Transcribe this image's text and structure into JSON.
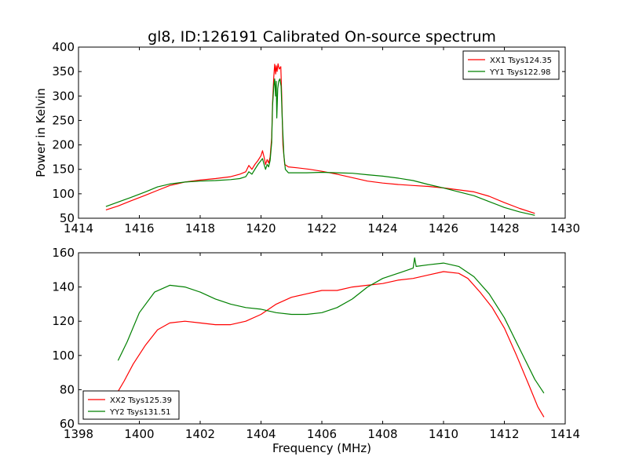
{
  "figure": {
    "title": "gl8, ID:126191 Calibrated On-source spectrum",
    "xlabel": "Frequency (MHz)",
    "ylabel": "Power in Kelvin"
  },
  "chart_data": [
    {
      "type": "line",
      "xlim": [
        1414,
        1430
      ],
      "ylim": [
        50,
        400
      ],
      "xticks": [
        1414,
        1416,
        1418,
        1420,
        1422,
        1424,
        1426,
        1428,
        1430
      ],
      "yticks": [
        50,
        100,
        150,
        200,
        250,
        300,
        350,
        400
      ],
      "legend_position": "top-right",
      "series": [
        {
          "name": "XX1 Tsys124.35",
          "color": "#ff0000",
          "points": [
            [
              1414.9,
              67
            ],
            [
              1415.3,
              75
            ],
            [
              1415.7,
              85
            ],
            [
              1416.2,
              97
            ],
            [
              1416.6,
              107
            ],
            [
              1417,
              117
            ],
            [
              1417.5,
              124
            ],
            [
              1418,
              128
            ],
            [
              1418.5,
              131
            ],
            [
              1419,
              135
            ],
            [
              1419.3,
              140
            ],
            [
              1419.5,
              145
            ],
            [
              1419.6,
              158
            ],
            [
              1419.7,
              150
            ],
            [
              1419.8,
              160
            ],
            [
              1419.9,
              168
            ],
            [
              1420,
              178
            ],
            [
              1420.05,
              188
            ],
            [
              1420.1,
              175
            ],
            [
              1420.15,
              160
            ],
            [
              1420.2,
              170
            ],
            [
              1420.25,
              163
            ],
            [
              1420.3,
              175
            ],
            [
              1420.35,
              215
            ],
            [
              1420.38,
              285
            ],
            [
              1420.42,
              340
            ],
            [
              1420.45,
              365
            ],
            [
              1420.48,
              345
            ],
            [
              1420.5,
              362
            ],
            [
              1420.53,
              350
            ],
            [
              1420.56,
              366
            ],
            [
              1420.6,
              355
            ],
            [
              1420.65,
              360
            ],
            [
              1420.68,
              300
            ],
            [
              1420.72,
              200
            ],
            [
              1420.78,
              160
            ],
            [
              1420.9,
              155
            ],
            [
              1421.2,
              153
            ],
            [
              1421.6,
              150
            ],
            [
              1422,
              146
            ],
            [
              1422.5,
              140
            ],
            [
              1423,
              133
            ],
            [
              1423.5,
              126
            ],
            [
              1424,
              122
            ],
            [
              1424.5,
              119
            ],
            [
              1425,
              117
            ],
            [
              1425.5,
              115
            ],
            [
              1426,
              112
            ],
            [
              1426.5,
              108
            ],
            [
              1427,
              104
            ],
            [
              1427.5,
              95
            ],
            [
              1428,
              82
            ],
            [
              1428.5,
              70
            ],
            [
              1429,
              60
            ]
          ]
        },
        {
          "name": "YY1 Tsys122.98",
          "color": "#008000",
          "points": [
            [
              1414.9,
              74
            ],
            [
              1415.3,
              83
            ],
            [
              1415.7,
              92
            ],
            [
              1416.2,
              104
            ],
            [
              1416.6,
              114
            ],
            [
              1417,
              120
            ],
            [
              1417.5,
              124
            ],
            [
              1418,
              126
            ],
            [
              1418.5,
              127
            ],
            [
              1419,
              129
            ],
            [
              1419.3,
              131
            ],
            [
              1419.5,
              135
            ],
            [
              1419.6,
              145
            ],
            [
              1419.7,
              140
            ],
            [
              1419.8,
              150
            ],
            [
              1419.9,
              160
            ],
            [
              1420,
              168
            ],
            [
              1420.05,
              172
            ],
            [
              1420.1,
              160
            ],
            [
              1420.15,
              150
            ],
            [
              1420.2,
              160
            ],
            [
              1420.25,
              155
            ],
            [
              1420.3,
              168
            ],
            [
              1420.35,
              205
            ],
            [
              1420.38,
              280
            ],
            [
              1420.42,
              320
            ],
            [
              1420.45,
              335
            ],
            [
              1420.48,
              300
            ],
            [
              1420.5,
              330
            ],
            [
              1420.52,
              255
            ],
            [
              1420.55,
              315
            ],
            [
              1420.58,
              330
            ],
            [
              1420.62,
              335
            ],
            [
              1420.66,
              320
            ],
            [
              1420.7,
              250
            ],
            [
              1420.75,
              180
            ],
            [
              1420.8,
              150
            ],
            [
              1420.9,
              143
            ],
            [
              1421.5,
              143
            ],
            [
              1422,
              144
            ],
            [
              1422.5,
              143
            ],
            [
              1423,
              142
            ],
            [
              1423.5,
              139
            ],
            [
              1424,
              136
            ],
            [
              1424.5,
              132
            ],
            [
              1425,
              127
            ],
            [
              1425.5,
              119
            ],
            [
              1426,
              112
            ],
            [
              1426.5,
              104
            ],
            [
              1427,
              96
            ],
            [
              1427.5,
              84
            ],
            [
              1428,
              72
            ],
            [
              1428.5,
              63
            ],
            [
              1429,
              56
            ]
          ]
        }
      ]
    },
    {
      "type": "line",
      "xlim": [
        1398,
        1414
      ],
      "ylim": [
        60,
        160
      ],
      "xticks": [
        1398,
        1400,
        1402,
        1404,
        1406,
        1408,
        1410,
        1412,
        1414
      ],
      "yticks": [
        60,
        80,
        100,
        120,
        140,
        160
      ],
      "legend_position": "bottom-left",
      "series": [
        {
          "name": "XX2 Tsys125.39",
          "color": "#ff0000",
          "points": [
            [
              1399.3,
              79
            ],
            [
              1399.5,
              85
            ],
            [
              1399.8,
              95
            ],
            [
              1400.2,
              106
            ],
            [
              1400.6,
              115
            ],
            [
              1401,
              119
            ],
            [
              1401.5,
              120
            ],
            [
              1402,
              119
            ],
            [
              1402.5,
              118
            ],
            [
              1403,
              118
            ],
            [
              1403.5,
              120
            ],
            [
              1404,
              124
            ],
            [
              1404.5,
              130
            ],
            [
              1405,
              134
            ],
            [
              1405.5,
              136
            ],
            [
              1406,
              138
            ],
            [
              1406.5,
              138
            ],
            [
              1407,
              140
            ],
            [
              1407.5,
              141
            ],
            [
              1408,
              142
            ],
            [
              1408.5,
              144
            ],
            [
              1409,
              145
            ],
            [
              1409.5,
              147
            ],
            [
              1410,
              149
            ],
            [
              1410.5,
              148
            ],
            [
              1410.8,
              145
            ],
            [
              1411.2,
              137
            ],
            [
              1411.6,
              128
            ],
            [
              1412,
              116
            ],
            [
              1412.4,
              100
            ],
            [
              1412.8,
              83
            ],
            [
              1413.1,
              70
            ],
            [
              1413.3,
              64
            ]
          ]
        },
        {
          "name": "YY2 Tsys131.51",
          "color": "#008000",
          "points": [
            [
              1399.3,
              97
            ],
            [
              1399.6,
              108
            ],
            [
              1400,
              125
            ],
            [
              1400.5,
              137
            ],
            [
              1401,
              141
            ],
            [
              1401.5,
              140
            ],
            [
              1402,
              137
            ],
            [
              1402.5,
              133
            ],
            [
              1403,
              130
            ],
            [
              1403.5,
              128
            ],
            [
              1404,
              127
            ],
            [
              1404.5,
              125
            ],
            [
              1405,
              124
            ],
            [
              1405.5,
              124
            ],
            [
              1406,
              125
            ],
            [
              1406.5,
              128
            ],
            [
              1407,
              133
            ],
            [
              1407.5,
              140
            ],
            [
              1408,
              145
            ],
            [
              1408.5,
              148
            ],
            [
              1409,
              151
            ],
            [
              1409.05,
              157
            ],
            [
              1409.1,
              152
            ],
            [
              1409.5,
              153
            ],
            [
              1410,
              154
            ],
            [
              1410.5,
              152
            ],
            [
              1411,
              146
            ],
            [
              1411.5,
              136
            ],
            [
              1412,
              122
            ],
            [
              1412.5,
              104
            ],
            [
              1413,
              86
            ],
            [
              1413.3,
              78
            ]
          ]
        }
      ]
    }
  ]
}
